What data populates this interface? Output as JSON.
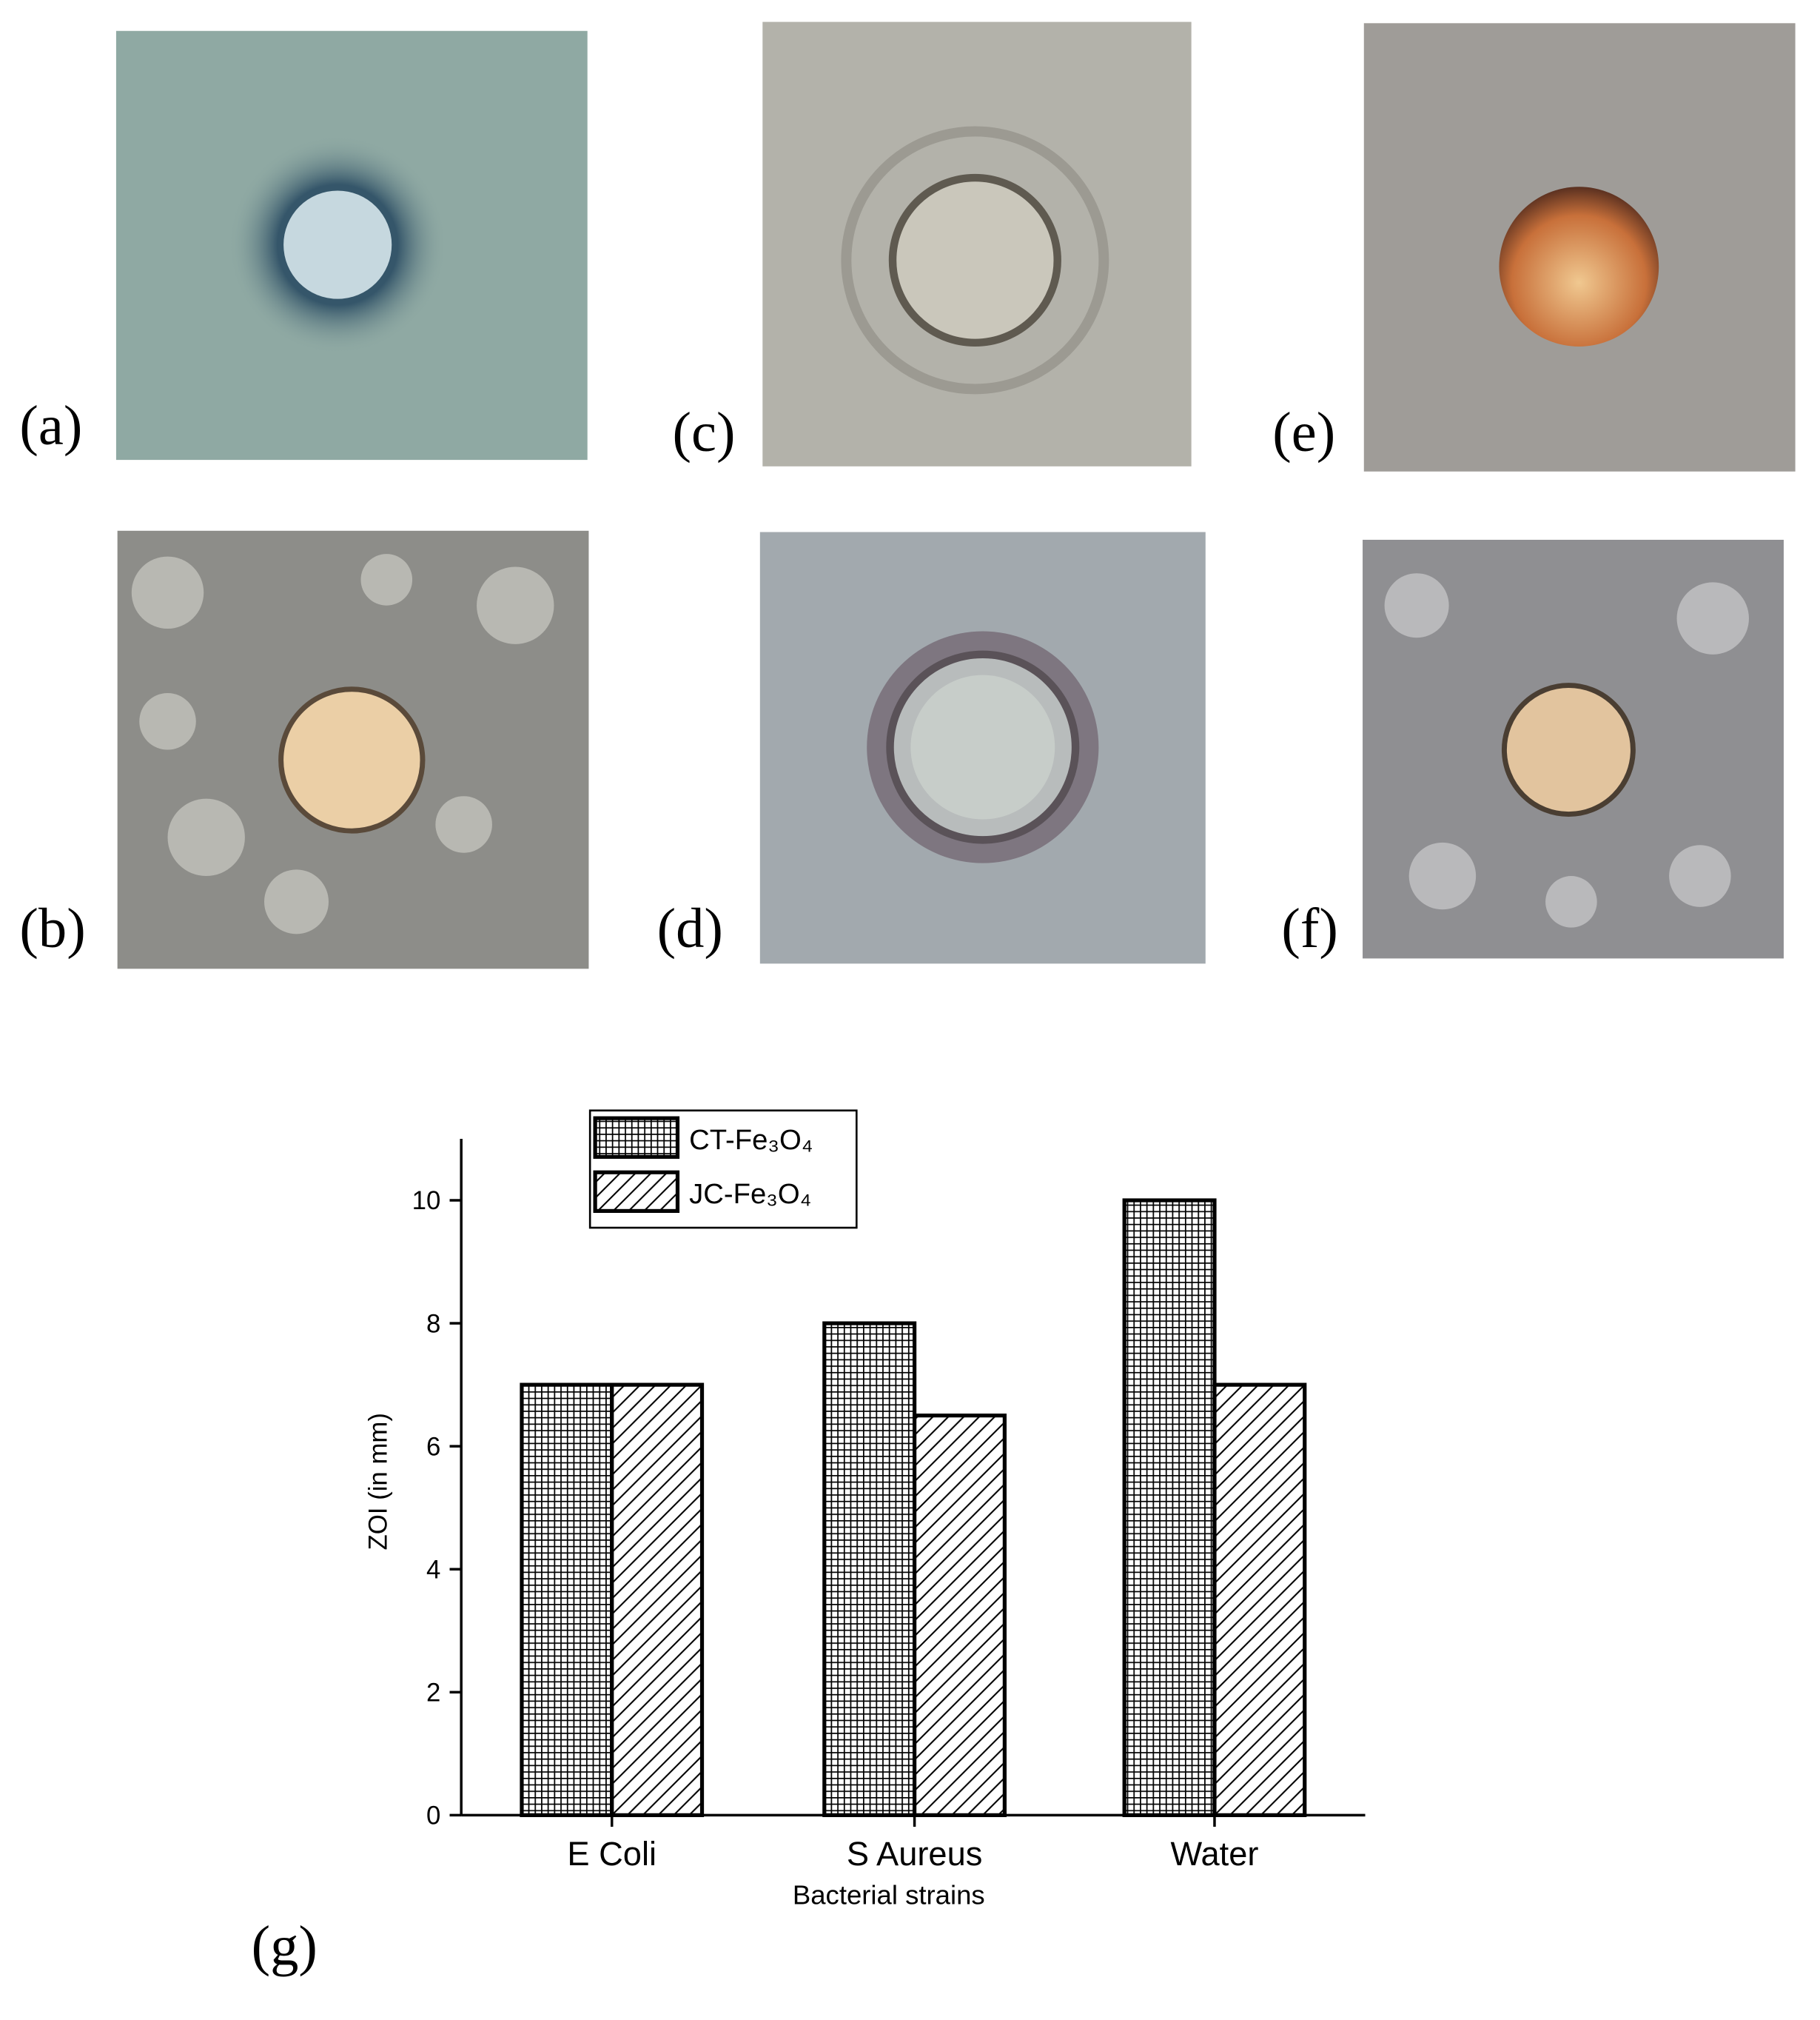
{
  "panel_labels": [
    "(a)",
    "(b)",
    "(c)",
    "(d)",
    "(e)",
    "(f)",
    "(g)"
  ],
  "chart_data": {
    "type": "bar",
    "x_label": "Bacterial strains",
    "y_label": "ZOI (in mm)",
    "categories": [
      "E Coli",
      "S Aureus",
      "Water"
    ],
    "series": [
      {
        "name": "CT-Fe₃O₄",
        "color": "#000000",
        "pattern": "grid",
        "values": [
          7,
          8,
          10
        ]
      },
      {
        "name": "JC-Fe₃O₄",
        "color": "#000000",
        "pattern": "diagonal",
        "values": [
          7,
          6.5,
          7
        ]
      }
    ],
    "ylim": [
      0,
      11
    ],
    "yticks": [
      0,
      2,
      4,
      6,
      8,
      10
    ],
    "legend": "top-left"
  }
}
